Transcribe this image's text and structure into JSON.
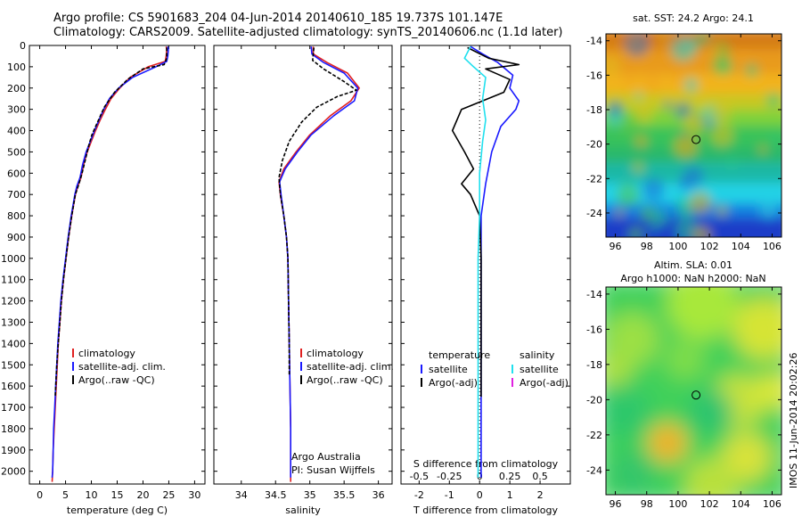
{
  "header": {
    "line1": "Argo profile: CS 5901683_204 04-Jun-2014 20140610_185 19.737S 101.147E",
    "line2": "Climatology: CARS2009. Satellite-adjusted climatology: synTS_20140606.nc (1.1d later)"
  },
  "side_text": "IMOS 11-Jun-2014 20:02:26",
  "colors": {
    "climatology": "#e02020",
    "satellite": "#1a1aff",
    "argo": "#000000",
    "sal_satellite": "#20e0ee",
    "sal_argo": "#e020e0"
  },
  "chart_data": [
    {
      "type": "line",
      "xlabel": "temperature (deg C)",
      "ylabel": "",
      "xlim": [
        -2,
        32
      ],
      "ylim": [
        2060,
        0
      ],
      "xticks": [
        "0",
        "5",
        "10",
        "15",
        "20",
        "25",
        "30"
      ],
      "xtick_values": [
        0,
        5,
        10,
        15,
        20,
        25,
        30
      ],
      "yticks": [
        "0",
        "100",
        "200",
        "300",
        "400",
        "500",
        "600",
        "700",
        "800",
        "900",
        "1000",
        "1100",
        "1200",
        "1300",
        "1400",
        "1500",
        "1600",
        "1700",
        "1800",
        "1900",
        "2000"
      ],
      "legend": [
        "climatology",
        "satellite-adj. clim.",
        "Argo(..raw -QC)"
      ],
      "series": [
        {
          "name": "climatology",
          "color": "#e02020",
          "points": [
            [
              24.5,
              5
            ],
            [
              24.6,
              20
            ],
            [
              24.5,
              50
            ],
            [
              24.3,
              75
            ],
            [
              21,
              100
            ],
            [
              17.5,
              150
            ],
            [
              15.5,
              200
            ],
            [
              13.8,
              250
            ],
            [
              12.7,
              300
            ],
            [
              11.7,
              350
            ],
            [
              10.8,
              400
            ],
            [
              10,
              450
            ],
            [
              9.2,
              500
            ],
            [
              8.5,
              560
            ],
            [
              8,
              620
            ],
            [
              7.4,
              660
            ],
            [
              6.9,
              700
            ],
            [
              6.2,
              800
            ],
            [
              5.6,
              900
            ],
            [
              5.1,
              1000
            ],
            [
              4.6,
              1100
            ],
            [
              4.2,
              1200
            ],
            [
              3.9,
              1300
            ],
            [
              3.6,
              1400
            ],
            [
              3.4,
              1500
            ],
            [
              3.2,
              1600
            ],
            [
              3,
              1700
            ],
            [
              2.8,
              1800
            ],
            [
              2.6,
              1900
            ],
            [
              2.5,
              2000
            ],
            [
              2.4,
              2050
            ]
          ]
        },
        {
          "name": "satellite-adj. clim.",
          "color": "#1a1aff",
          "points": [
            [
              24.8,
              5
            ],
            [
              24.9,
              20
            ],
            [
              24.8,
              50
            ],
            [
              24.6,
              75
            ],
            [
              22.5,
              100
            ],
            [
              18,
              150
            ],
            [
              15.3,
              200
            ],
            [
              13.5,
              250
            ],
            [
              12.4,
              300
            ],
            [
              11.5,
              350
            ],
            [
              10.6,
              400
            ],
            [
              9.8,
              450
            ],
            [
              9,
              500
            ],
            [
              8.3,
              560
            ],
            [
              7.8,
              620
            ],
            [
              7.2,
              660
            ],
            [
              6.8,
              700
            ],
            [
              6.1,
              800
            ],
            [
              5.5,
              900
            ],
            [
              5,
              1000
            ],
            [
              4.5,
              1100
            ],
            [
              4.1,
              1200
            ],
            [
              3.8,
              1300
            ],
            [
              3.5,
              1400
            ],
            [
              3.3,
              1500
            ],
            [
              3.1,
              1600
            ],
            [
              2.9,
              1700
            ],
            [
              2.7,
              1800
            ],
            [
              2.6,
              1900
            ],
            [
              2.5,
              2000
            ],
            [
              2.4,
              2030
            ]
          ]
        },
        {
          "name": "Argo(..raw -QC)",
          "color": "#000000",
          "points": [
            [
              24.6,
              10
            ],
            [
              24.6,
              60
            ],
            [
              24.1,
              90
            ],
            [
              20,
              110
            ],
            [
              17,
              160
            ],
            [
              14.5,
              220
            ],
            [
              12.5,
              290
            ],
            [
              11.2,
              360
            ],
            [
              10.1,
              420
            ],
            [
              9.5,
              470
            ],
            [
              8.8,
              540
            ],
            [
              8.2,
              600
            ],
            [
              7.6,
              650
            ],
            [
              6.9,
              700
            ],
            [
              6.2,
              800
            ],
            [
              5.6,
              900
            ],
            [
              5.1,
              1000
            ],
            [
              4.6,
              1100
            ],
            [
              4.2,
              1200
            ],
            [
              3.9,
              1300
            ],
            [
              3.6,
              1400
            ],
            [
              3.3,
              1500
            ],
            [
              3.1,
              1600
            ],
            [
              3,
              1650
            ]
          ],
          "dash": "4,2"
        }
      ]
    },
    {
      "type": "line",
      "xlabel": "salinity",
      "ylabel": "",
      "xlim": [
        33.6,
        36.2
      ],
      "ylim": [
        2060,
        0
      ],
      "xticks": [
        "34",
        "34.5",
        "35",
        "35.5",
        "36"
      ],
      "xtick_values": [
        34,
        34.5,
        35,
        35.5,
        36
      ],
      "legend": [
        "climatology",
        "satellite-adj. clim.",
        "Argo(..raw -QC)"
      ],
      "notes": [
        "Argo Australia",
        "PI: Susan Wijffels"
      ],
      "series": [
        {
          "name": "climatology",
          "color": "#e02020",
          "points": [
            [
              35.05,
              5
            ],
            [
              35.05,
              40
            ],
            [
              35.25,
              80
            ],
            [
              35.55,
              130
            ],
            [
              35.72,
              200
            ],
            [
              35.6,
              260
            ],
            [
              35.3,
              330
            ],
            [
              35,
              420
            ],
            [
              34.8,
              500
            ],
            [
              34.62,
              580
            ],
            [
              34.55,
              640
            ],
            [
              34.57,
              700
            ],
            [
              34.62,
              800
            ],
            [
              34.66,
              900
            ],
            [
              34.68,
              1000
            ],
            [
              34.69,
              1200
            ],
            [
              34.7,
              1400
            ],
            [
              34.71,
              1600
            ],
            [
              34.72,
              1800
            ],
            [
              34.72,
              2000
            ],
            [
              34.72,
              2050
            ]
          ]
        },
        {
          "name": "satellite-adj. clim.",
          "color": "#1a1aff",
          "points": [
            [
              35.02,
              5
            ],
            [
              35.03,
              40
            ],
            [
              35.2,
              80
            ],
            [
              35.5,
              130
            ],
            [
              35.7,
              200
            ],
            [
              35.65,
              260
            ],
            [
              35.35,
              330
            ],
            [
              35.02,
              420
            ],
            [
              34.82,
              500
            ],
            [
              34.64,
              580
            ],
            [
              34.56,
              640
            ],
            [
              34.58,
              700
            ],
            [
              34.62,
              800
            ],
            [
              34.66,
              900
            ],
            [
              34.68,
              1000
            ],
            [
              34.69,
              1200
            ],
            [
              34.7,
              1400
            ],
            [
              34.71,
              1600
            ],
            [
              34.72,
              1800
            ],
            [
              34.72,
              2000
            ],
            [
              34.72,
              2030
            ]
          ]
        },
        {
          "name": "Argo(..raw -QC)",
          "color": "#000000",
          "points": [
            [
              35.06,
              10
            ],
            [
              35.04,
              70
            ],
            [
              35.2,
              110
            ],
            [
              35.5,
              170
            ],
            [
              35.68,
              210
            ],
            [
              35.4,
              240
            ],
            [
              35.1,
              290
            ],
            [
              34.88,
              360
            ],
            [
              34.7,
              450
            ],
            [
              34.6,
              540
            ],
            [
              34.55,
              620
            ],
            [
              34.57,
              700
            ],
            [
              34.62,
              800
            ],
            [
              34.66,
              900
            ],
            [
              34.68,
              1000
            ],
            [
              34.69,
              1200
            ],
            [
              34.7,
              1400
            ],
            [
              34.7,
              1550
            ]
          ],
          "dash": "4,2"
        }
      ]
    },
    {
      "type": "line",
      "xlabel": "T difference from climatology",
      "xlabel_top": "S difference from climatology",
      "ylabel": "",
      "xlim": [
        -2.6,
        3.0
      ],
      "ylim": [
        2060,
        0
      ],
      "xticks": [
        "-2",
        "-1",
        "0",
        "1",
        "2"
      ],
      "xtick_values": [
        -2,
        -1,
        0,
        1,
        2
      ],
      "sticks": [
        "-0.5",
        "-0.25",
        "0",
        "0.25",
        "0.5"
      ],
      "stick_positions": [
        -2,
        -1,
        0,
        1,
        2
      ],
      "legend_temperature": {
        "title": "temperature",
        "items": [
          "satellite",
          "Argo(-adj)"
        ]
      },
      "legend_salinity": {
        "title": "salinity",
        "items": [
          "satellite",
          "Argo(-adj)"
        ]
      },
      "series": [
        {
          "name": "temperature satellite",
          "color": "#1a1aff",
          "points": [
            [
              -0.3,
              5
            ],
            [
              0.1,
              40
            ],
            [
              0.6,
              80
            ],
            [
              1.1,
              140
            ],
            [
              1,
              200
            ],
            [
              1.3,
              260
            ],
            [
              1.2,
              300
            ],
            [
              0.7,
              380
            ],
            [
              0.4,
              500
            ],
            [
              0.2,
              650
            ],
            [
              0.05,
              800
            ],
            [
              0.05,
              1000
            ],
            [
              0.05,
              1400
            ],
            [
              0.05,
              1800
            ],
            [
              0.05,
              2030
            ]
          ]
        },
        {
          "name": "temperature Argo(-adj)",
          "color": "#000000",
          "points": [
            [
              -0.4,
              10
            ],
            [
              0.3,
              60
            ],
            [
              1.3,
              90
            ],
            [
              0.2,
              110
            ],
            [
              1,
              160
            ],
            [
              0.8,
              220
            ],
            [
              -0.6,
              300
            ],
            [
              -0.9,
              400
            ],
            [
              -0.5,
              500
            ],
            [
              -0.2,
              580
            ],
            [
              -0.6,
              650
            ],
            [
              -0.3,
              700
            ],
            [
              0,
              800
            ],
            [
              0.05,
              1000
            ],
            [
              0.05,
              1300
            ],
            [
              0.05,
              1650
            ]
          ]
        },
        {
          "name": "salinity satellite",
          "color": "#20e0ee",
          "points": [
            [
              -0.3,
              5
            ],
            [
              -0.5,
              60
            ],
            [
              -0.2,
              100
            ],
            [
              0.2,
              150
            ],
            [
              0.1,
              250
            ],
            [
              0.2,
              350
            ],
            [
              0.1,
              450
            ],
            [
              0,
              600
            ],
            [
              0,
              800
            ],
            [
              -0.05,
              1000
            ],
            [
              -0.05,
              1400
            ],
            [
              -0.05,
              1800
            ],
            [
              -0.05,
              2030
            ]
          ]
        },
        {
          "name": "salinity Argo(-adj)",
          "color": "#e020e0",
          "points": []
        }
      ]
    },
    {
      "type": "heatmap",
      "title": "sat. SST: 24.2 Argo: 24.1",
      "xticks": [
        "96",
        "98",
        "100",
        "102",
        "104",
        "106"
      ],
      "xtick_values": [
        96,
        98,
        100,
        102,
        104,
        106
      ],
      "yticks": [
        "-14",
        "-16",
        "-18",
        "-20",
        "-22",
        "-24"
      ],
      "ytick_values": [
        -14,
        -16,
        -18,
        -20,
        -22,
        -24
      ],
      "xlim": [
        95.4,
        106.6
      ],
      "ylim": [
        -25.4,
        -13.6
      ],
      "marker": [
        101.147,
        -19.737
      ]
    },
    {
      "type": "heatmap",
      "title_lines": [
        "Altim. SLA: 0.01",
        "Argo h1000: NaN h2000: NaN"
      ],
      "xticks": [
        "96",
        "98",
        "100",
        "102",
        "104",
        "106"
      ],
      "xtick_values": [
        96,
        98,
        100,
        102,
        104,
        106
      ],
      "yticks": [
        "-14",
        "-16",
        "-18",
        "-20",
        "-22",
        "-24"
      ],
      "ytick_values": [
        -14,
        -16,
        -18,
        -20,
        -22,
        -24
      ],
      "xlim": [
        95.4,
        106.6
      ],
      "ylim": [
        -25.4,
        -13.6
      ],
      "marker": [
        101.147,
        -19.737
      ]
    }
  ]
}
